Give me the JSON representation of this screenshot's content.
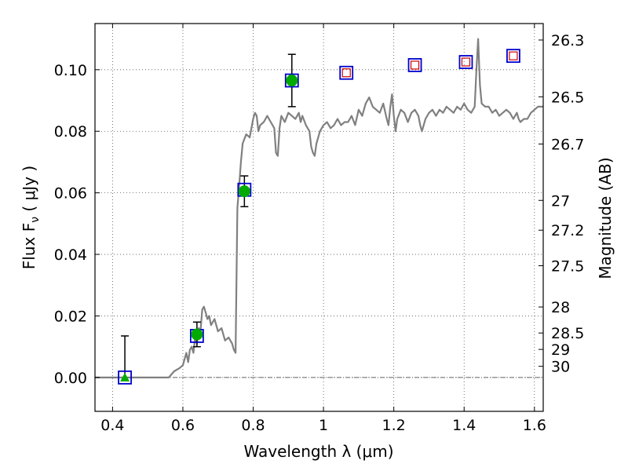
{
  "chart_data": {
    "type": "scatter",
    "xlabel": "Wavelength  λ (μm)",
    "ylabel": "Flux  F",
    "ylabel_sub": "ν",
    "ylabel_unit": "  ( μJy )",
    "y2label": "Magnitude (AB)",
    "xlim": [
      0.35,
      1.625
    ],
    "ylim": [
      -0.011,
      0.115
    ],
    "grid": true,
    "x_ticks": [
      0.4,
      0.6,
      0.8,
      1.0,
      1.2,
      1.4,
      1.6
    ],
    "x_tick_labels": [
      "0.4",
      "0.6",
      "0.8",
      "1",
      "1.2",
      "1.4",
      "1.6"
    ],
    "y_ticks": [
      0.0,
      0.02,
      0.04,
      0.06,
      0.08,
      0.1
    ],
    "y_tick_labels": [
      "0.00",
      "0.02",
      "0.04",
      "0.06",
      "0.08",
      "0.10"
    ],
    "mag_ticks": [
      "26.3",
      "26.5",
      "26.7",
      "27",
      "27.2",
      "27.5",
      "28",
      "28.5",
      "29",
      "30"
    ],
    "zero_line": 0.0,
    "model_spectrum": {
      "color": "#808080",
      "points": [
        [
          0.35,
          0.0
        ],
        [
          0.56,
          0.0
        ],
        [
          0.575,
          0.002
        ],
        [
          0.59,
          0.003
        ],
        [
          0.6,
          0.004
        ],
        [
          0.605,
          0.006
        ],
        [
          0.61,
          0.008
        ],
        [
          0.615,
          0.005
        ],
        [
          0.62,
          0.009
        ],
        [
          0.625,
          0.01
        ],
        [
          0.63,
          0.008
        ],
        [
          0.635,
          0.013
        ],
        [
          0.64,
          0.011
        ],
        [
          0.645,
          0.016
        ],
        [
          0.65,
          0.015
        ],
        [
          0.655,
          0.022
        ],
        [
          0.66,
          0.023
        ],
        [
          0.665,
          0.021
        ],
        [
          0.67,
          0.019
        ],
        [
          0.675,
          0.02
        ],
        [
          0.68,
          0.017
        ],
        [
          0.69,
          0.019
        ],
        [
          0.7,
          0.015
        ],
        [
          0.71,
          0.016
        ],
        [
          0.72,
          0.012
        ],
        [
          0.73,
          0.013
        ],
        [
          0.74,
          0.011
        ],
        [
          0.745,
          0.009
        ],
        [
          0.75,
          0.008
        ],
        [
          0.755,
          0.055
        ],
        [
          0.76,
          0.062
        ],
        [
          0.765,
          0.07
        ],
        [
          0.77,
          0.076
        ],
        [
          0.78,
          0.079
        ],
        [
          0.79,
          0.078
        ],
        [
          0.8,
          0.084
        ],
        [
          0.805,
          0.086
        ],
        [
          0.81,
          0.085
        ],
        [
          0.815,
          0.08
        ],
        [
          0.82,
          0.082
        ],
        [
          0.83,
          0.083
        ],
        [
          0.84,
          0.085
        ],
        [
          0.85,
          0.083
        ],
        [
          0.86,
          0.081
        ],
        [
          0.865,
          0.073
        ],
        [
          0.87,
          0.072
        ],
        [
          0.875,
          0.081
        ],
        [
          0.88,
          0.085
        ],
        [
          0.89,
          0.083
        ],
        [
          0.9,
          0.086
        ],
        [
          0.91,
          0.085
        ],
        [
          0.92,
          0.084
        ],
        [
          0.93,
          0.086
        ],
        [
          0.935,
          0.083
        ],
        [
          0.94,
          0.085
        ],
        [
          0.95,
          0.082
        ],
        [
          0.96,
          0.08
        ],
        [
          0.965,
          0.075
        ],
        [
          0.97,
          0.073
        ],
        [
          0.975,
          0.072
        ],
        [
          0.98,
          0.076
        ],
        [
          0.99,
          0.08
        ],
        [
          1.0,
          0.082
        ],
        [
          1.01,
          0.083
        ],
        [
          1.02,
          0.081
        ],
        [
          1.03,
          0.082
        ],
        [
          1.04,
          0.084
        ],
        [
          1.05,
          0.082
        ],
        [
          1.06,
          0.083
        ],
        [
          1.07,
          0.083
        ],
        [
          1.08,
          0.085
        ],
        [
          1.09,
          0.082
        ],
        [
          1.1,
          0.087
        ],
        [
          1.11,
          0.085
        ],
        [
          1.12,
          0.089
        ],
        [
          1.13,
          0.091
        ],
        [
          1.14,
          0.088
        ],
        [
          1.15,
          0.087
        ],
        [
          1.16,
          0.086
        ],
        [
          1.17,
          0.089
        ],
        [
          1.18,
          0.084
        ],
        [
          1.185,
          0.082
        ],
        [
          1.19,
          0.088
        ],
        [
          1.195,
          0.092
        ],
        [
          1.2,
          0.085
        ],
        [
          1.205,
          0.08
        ],
        [
          1.21,
          0.084
        ],
        [
          1.22,
          0.087
        ],
        [
          1.23,
          0.086
        ],
        [
          1.24,
          0.083
        ],
        [
          1.25,
          0.086
        ],
        [
          1.26,
          0.087
        ],
        [
          1.27,
          0.085
        ],
        [
          1.275,
          0.082
        ],
        [
          1.28,
          0.08
        ],
        [
          1.29,
          0.084
        ],
        [
          1.3,
          0.086
        ],
        [
          1.31,
          0.087
        ],
        [
          1.32,
          0.085
        ],
        [
          1.33,
          0.087
        ],
        [
          1.34,
          0.086
        ],
        [
          1.35,
          0.088
        ],
        [
          1.36,
          0.087
        ],
        [
          1.37,
          0.086
        ],
        [
          1.38,
          0.088
        ],
        [
          1.39,
          0.087
        ],
        [
          1.4,
          0.089
        ],
        [
          1.41,
          0.087
        ],
        [
          1.42,
          0.086
        ],
        [
          1.43,
          0.088
        ],
        [
          1.435,
          0.1
        ],
        [
          1.44,
          0.11
        ],
        [
          1.445,
          0.095
        ],
        [
          1.45,
          0.089
        ],
        [
          1.46,
          0.088
        ],
        [
          1.47,
          0.088
        ],
        [
          1.48,
          0.086
        ],
        [
          1.49,
          0.087
        ],
        [
          1.5,
          0.085
        ],
        [
          1.51,
          0.086
        ],
        [
          1.52,
          0.087
        ],
        [
          1.53,
          0.086
        ],
        [
          1.54,
          0.084
        ],
        [
          1.55,
          0.086
        ],
        [
          1.555,
          0.084
        ],
        [
          1.56,
          0.083
        ],
        [
          1.57,
          0.084
        ],
        [
          1.58,
          0.084
        ],
        [
          1.59,
          0.086
        ],
        [
          1.6,
          0.087
        ],
        [
          1.61,
          0.088
        ],
        [
          1.625,
          0.088
        ]
      ]
    },
    "series": [
      {
        "marker": "blue-square",
        "points": [
          [
            0.435,
            0.0
          ],
          [
            0.64,
            0.0135
          ],
          [
            0.775,
            0.061
          ],
          [
            0.91,
            0.0965
          ],
          [
            1.065,
            0.099
          ],
          [
            1.26,
            0.1015
          ],
          [
            1.405,
            0.1025
          ],
          [
            1.54,
            0.1045
          ]
        ]
      },
      {
        "marker": "red-square",
        "points": [
          [
            1.065,
            0.099
          ],
          [
            1.26,
            0.1015
          ],
          [
            1.405,
            0.1025
          ],
          [
            1.54,
            0.1045
          ]
        ]
      },
      {
        "marker": "green-circle",
        "points": [
          [
            0.64,
            0.014
          ],
          [
            0.775,
            0.0605
          ],
          [
            0.91,
            0.0965
          ]
        ],
        "errors": [
          0.004,
          0.005,
          0.0085
        ]
      },
      {
        "marker": "green-triangle",
        "points": [
          [
            0.435,
            0.0
          ]
        ],
        "errors_up": [
          0.0135
        ]
      }
    ],
    "colors": {
      "spectrum": "#808080",
      "open_square": "#0000cc",
      "open_square_inner": "#cc0000",
      "filled_point": "#00aa00",
      "errorbar": "#000000",
      "grid": "#555555"
    }
  }
}
